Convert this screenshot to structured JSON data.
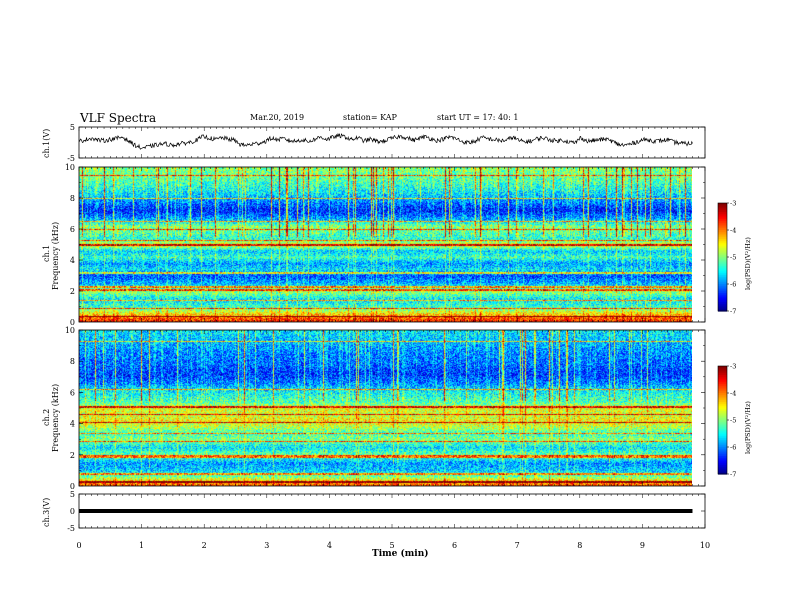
{
  "header": {
    "title": "VLF Spectra",
    "date": "Mar.20, 2019",
    "station": "station= KAP",
    "start": "start  UT =   17: 40: 1"
  },
  "chart_data": [
    {
      "type": "line",
      "name": "ch1-voltage",
      "ylabel": "ch.1(V)",
      "ylim": [
        -5,
        5
      ],
      "y_ticks": [
        "5",
        "-5"
      ],
      "xlim": [
        0,
        10
      ],
      "data_end_min": 9.8,
      "line_color": "#000000",
      "values_min": [
        0.4,
        0.9,
        1.4,
        0.8,
        0.6,
        1.0,
        1.3,
        1.8,
        0.5,
        -0.8,
        -1.8,
        -1.5,
        -1.0,
        -0.6,
        -0.4,
        -0.9,
        -0.5,
        -0.2,
        0.1,
        0.8,
        1.9,
        1.5,
        0.9,
        1.6,
        1.1,
        0.8,
        -0.6,
        -0.9,
        -0.5,
        -0.2,
        0.3,
        1.4,
        0.9,
        1.2,
        0.6,
        0.4,
        0.9,
        0.3,
        1.0,
        1.8,
        1.0,
        1.7,
        2.2,
        1.8,
        0.9,
        1.6,
        0.5,
        1.1,
        0.4,
        0.3,
        1.1,
        1.6,
        2.0,
        1.5,
        0.7,
        1.4,
        1.9,
        1.0,
        0.6,
        1.3,
        1.8,
        1.1,
        0.2,
        -0.1,
        0.5,
        1.6,
        1.2,
        0.9,
        0.6,
        0.7,
        1.8,
        0.6,
        0.2,
        0.5,
        1.3,
        1.5,
        0.9,
        0.5,
        0.8,
        0.3,
        -0.2,
        1.6,
        0.4,
        0.6,
        0.9,
        1.1,
        0.4,
        -0.6,
        -0.9,
        -0.5,
        0.2,
        0.9,
        0.8,
        0.4,
        0.6,
        0.9,
        0.1,
        -0.2,
        -0.4,
        -0.3
      ]
    },
    {
      "type": "heatmap",
      "name": "ch1-spectrogram",
      "ylabel_channel": "ch.1",
      "ylabel": "Frequency (kHz)",
      "ylim": [
        0,
        10
      ],
      "y_ticks": [
        "0",
        "2",
        "4",
        "6",
        "8",
        "10"
      ],
      "xlim": [
        0,
        10
      ],
      "data_end_min": 9.8,
      "colorbar": {
        "label": "log(PSD)(V²/Hz)",
        "range": [
          -7,
          -3
        ],
        "ticks": [
          "-3",
          "-4",
          "-5",
          "-6",
          "-7"
        ]
      },
      "band_profile_kHz": [
        [
          0.0,
          -3.6
        ],
        [
          0.3,
          -3.9
        ],
        [
          0.6,
          -4.5
        ],
        [
          1.0,
          -5.3
        ],
        [
          1.5,
          -5.6
        ],
        [
          2.0,
          -4.9
        ],
        [
          2.5,
          -5.8
        ],
        [
          3.0,
          -6.2
        ],
        [
          3.4,
          -5.6
        ],
        [
          3.8,
          -5.9
        ],
        [
          4.2,
          -5.3
        ],
        [
          4.6,
          -5.7
        ],
        [
          5.0,
          -4.6
        ],
        [
          5.4,
          -5.4
        ],
        [
          5.8,
          -5.2
        ],
        [
          6.2,
          -5.0
        ],
        [
          6.6,
          -5.8
        ],
        [
          7.2,
          -6.4
        ],
        [
          7.8,
          -6.0
        ],
        [
          8.5,
          -5.5
        ],
        [
          9.2,
          -5.2
        ],
        [
          10.0,
          -5.0
        ]
      ],
      "lines_kHz": [
        0.4,
        0.9,
        1.4,
        2.1,
        2.3,
        3.2,
        5.0,
        5.3,
        6.0,
        6.5,
        8.0,
        9.5
      ]
    },
    {
      "type": "heatmap",
      "name": "ch2-spectrogram",
      "ylabel_channel": "ch.2",
      "ylabel": "Frequency (kHz)",
      "ylim": [
        0,
        10
      ],
      "y_ticks": [
        "0",
        "2",
        "4",
        "6",
        "8",
        "10"
      ],
      "xlim": [
        0,
        10
      ],
      "data_end_min": 9.8,
      "colorbar": {
        "label": "log(PSD)(V²/Hz)",
        "range": [
          -7,
          -3
        ],
        "ticks": [
          "-3",
          "-4",
          "-5",
          "-6",
          "-7"
        ]
      },
      "band_profile_kHz": [
        [
          0.0,
          -3.8
        ],
        [
          0.3,
          -4.2
        ],
        [
          0.6,
          -5.0
        ],
        [
          1.0,
          -5.7
        ],
        [
          1.5,
          -5.9
        ],
        [
          2.0,
          -5.1
        ],
        [
          2.5,
          -5.6
        ],
        [
          3.0,
          -5.0
        ],
        [
          3.4,
          -5.3
        ],
        [
          3.8,
          -4.8
        ],
        [
          4.2,
          -4.5
        ],
        [
          4.6,
          -4.7
        ],
        [
          5.0,
          -4.6
        ],
        [
          5.4,
          -5.2
        ],
        [
          5.8,
          -5.4
        ],
        [
          6.2,
          -5.6
        ],
        [
          6.6,
          -6.0
        ],
        [
          7.2,
          -6.3
        ],
        [
          7.8,
          -6.1
        ],
        [
          8.5,
          -6.0
        ],
        [
          9.2,
          -5.8
        ],
        [
          10.0,
          -5.6
        ]
      ],
      "lines_kHz": [
        0.3,
        0.8,
        1.9,
        2.0,
        2.9,
        3.4,
        4.1,
        4.6,
        5.1,
        6.2,
        9.3
      ]
    },
    {
      "type": "line",
      "name": "ch3-voltage",
      "ylabel": "ch.3(V)",
      "ylim": [
        -5,
        5
      ],
      "y_ticks": [
        "5",
        "0",
        "-5"
      ],
      "xlim": [
        0,
        10
      ],
      "xlabel": "Time (min)",
      "x_ticks": [
        "0",
        "1",
        "2",
        "3",
        "4",
        "5",
        "6",
        "7",
        "8",
        "9",
        "10"
      ],
      "data_end_min": 9.8,
      "constant_value": 0,
      "line_color": "#000000"
    }
  ]
}
